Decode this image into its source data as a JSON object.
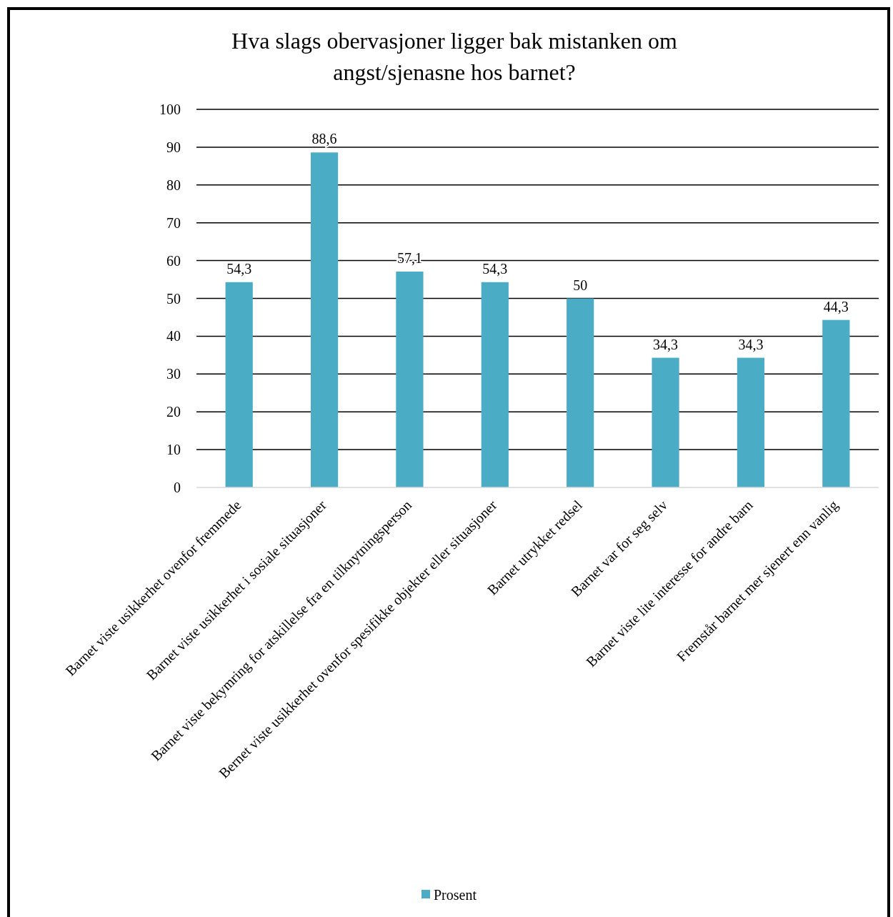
{
  "chart_data": {
    "type": "bar",
    "title": "Hva slags obervasjoner ligger bak mistanken om angst/sjenasne hos barnet?",
    "categories": [
      "Barnet viste usikkerhet ovenfor fremmede",
      "Barnet viste usikkerhet i sosiale situasjoner",
      "Barnet viste bekymring for atskillelse fra en tilknytningsperson",
      "Bernet viste usikkerhet ovenfor spesifikke objekter eller situasjoner",
      "Barnet utrykket redsel",
      "Barnet var for seg selv",
      "Barnet viste lite interesse for andre barn",
      "Fremstår barnet mer sjenert enn vanlig"
    ],
    "series": [
      {
        "name": "Prosent",
        "color": "#4bacc6",
        "values": [
          54.3,
          88.6,
          57.1,
          54.3,
          50,
          34.3,
          34.3,
          44.3
        ],
        "value_labels": [
          "54,3",
          "88,6",
          "57,1",
          "54,3",
          "50",
          "34,3",
          "34,3",
          "44,3"
        ]
      }
    ],
    "ylim": [
      0,
      100
    ],
    "yticks": [
      0,
      10,
      20,
      30,
      40,
      50,
      60,
      70,
      80,
      90,
      100
    ],
    "grid": "y",
    "legend": "bottom"
  }
}
